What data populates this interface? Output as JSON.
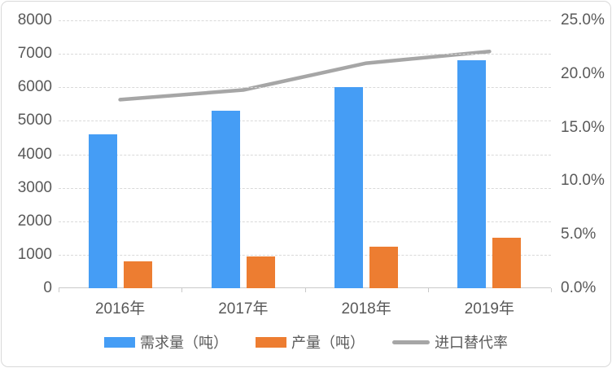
{
  "chart": {
    "background": "#ffffff",
    "border_color": "#d9d9d9",
    "gridline_color": "#d9d9d9",
    "axis_line_color": "#c9c9c9",
    "text_color": "#595959"
  },
  "chart_data": {
    "type": "bar",
    "subtype": "bar-and-line-combo",
    "title": "",
    "categories": [
      "2016年",
      "2017年",
      "2018年",
      "2019年"
    ],
    "series": [
      {
        "name": "需求量（吨）",
        "type": "bar",
        "axis": "left",
        "color": "#459df5",
        "values": [
          4600,
          5300,
          6000,
          6800
        ]
      },
      {
        "name": "产量（吨）",
        "type": "bar",
        "axis": "left",
        "color": "#ed7d31",
        "values": [
          800,
          950,
          1250,
          1500
        ]
      },
      {
        "name": "进口替代率",
        "type": "line",
        "axis": "right",
        "color": "#a6a6a6",
        "values": [
          17.6,
          18.5,
          21.0,
          22.1
        ]
      }
    ],
    "left_axis": {
      "min": 0,
      "max": 8000,
      "step": 1000,
      "tick_labels": [
        "0",
        "1000",
        "2000",
        "3000",
        "4000",
        "5000",
        "6000",
        "7000",
        "8000"
      ]
    },
    "right_axis": {
      "min": 0,
      "max": 25,
      "step": 5,
      "tick_labels": [
        "0.0%",
        "5.0%",
        "10.0%",
        "15.0%",
        "20.0%",
        "25.0%"
      ]
    },
    "grid": true,
    "legend_position": "bottom"
  }
}
